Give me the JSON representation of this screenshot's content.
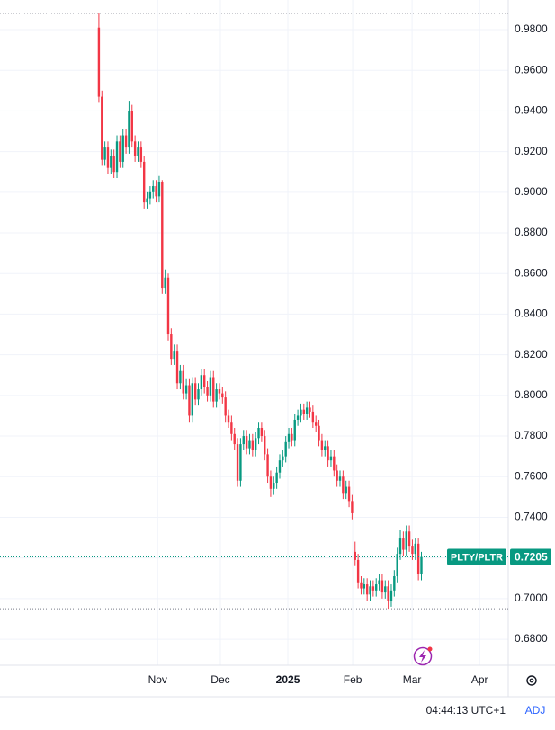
{
  "chart_data": {
    "type": "candlestick",
    "symbol": "PLTY/PLTR",
    "last_price": 0.7205,
    "time": "04:44:13 UTC+1",
    "adjust": "ADJ",
    "up_color": "#089981",
    "down_color": "#f23645",
    "grid": true,
    "high_low_lines": [
      0.988,
      0.695
    ],
    "xlim": [
      -32.8,
      135.8
    ],
    "xticks": [
      {
        "value": 19.5,
        "label": "Nov"
      },
      {
        "value": 40.3,
        "label": "Dec"
      },
      {
        "value": 62.7,
        "label": "2025"
      },
      {
        "value": 84.2,
        "label": "Feb"
      },
      {
        "value": 103.9,
        "label": "Mar"
      },
      {
        "value": 126.3,
        "label": "Apr"
      }
    ],
    "ylim": [
      0.6672,
      0.9946
    ],
    "yticks": [
      {
        "value": 0.98,
        "label": "0.9800"
      },
      {
        "value": 0.96,
        "label": "0.9600"
      },
      {
        "value": 0.94,
        "label": "0.9400"
      },
      {
        "value": 0.92,
        "label": "0.9200"
      },
      {
        "value": 0.9,
        "label": "0.9000"
      },
      {
        "value": 0.88,
        "label": "0.8800"
      },
      {
        "value": 0.86,
        "label": "0.8600"
      },
      {
        "value": 0.84,
        "label": "0.8400"
      },
      {
        "value": 0.82,
        "label": "0.8200"
      },
      {
        "value": 0.8,
        "label": "0.8000"
      },
      {
        "value": 0.78,
        "label": "0.7800"
      },
      {
        "value": 0.76,
        "label": "0.7600"
      },
      {
        "value": 0.74,
        "label": "0.7400"
      },
      {
        "value": 0.72,
        "label": "0.7200"
      },
      {
        "value": 0.7,
        "label": "0.7000"
      },
      {
        "value": 0.68,
        "label": "0.6800"
      }
    ],
    "x": [
      0,
      1,
      2,
      3,
      4,
      5,
      6,
      7,
      8,
      9,
      10,
      11,
      12,
      13,
      14,
      15,
      16,
      17,
      18,
      19,
      20,
      21,
      22,
      23,
      24,
      25,
      26,
      27,
      28,
      29,
      30,
      31,
      32,
      33,
      34,
      35,
      36,
      37,
      38,
      39,
      40,
      41,
      42,
      43,
      44,
      45,
      46,
      47,
      48,
      49,
      50,
      51,
      52,
      53,
      54,
      55,
      56,
      57,
      58,
      59,
      60,
      61,
      62,
      63,
      64,
      65,
      66,
      67,
      68,
      69,
      70,
      71,
      72,
      73,
      74,
      75,
      76,
      77,
      78,
      79,
      80,
      81,
      82,
      83,
      84,
      85,
      86,
      87,
      88,
      89,
      90,
      91,
      92,
      93,
      94,
      95,
      96,
      97,
      98,
      99,
      100,
      101,
      102,
      103,
      104,
      105,
      106,
      107
    ],
    "open": [
      0.981,
      0.947,
      0.916,
      0.922,
      0.912,
      0.918,
      0.91,
      0.925,
      0.915,
      0.928,
      0.922,
      0.94,
      0.925,
      0.918,
      0.922,
      0.915,
      0.895,
      0.897,
      0.9,
      0.903,
      0.898,
      0.905,
      0.853,
      0.858,
      0.83,
      0.818,
      0.822,
      0.806,
      0.812,
      0.801,
      0.805,
      0.79,
      0.806,
      0.798,
      0.803,
      0.81,
      0.804,
      0.8,
      0.809,
      0.797,
      0.803,
      0.801,
      0.799,
      0.79,
      0.787,
      0.781,
      0.776,
      0.758,
      0.776,
      0.78,
      0.774,
      0.778,
      0.773,
      0.779,
      0.784,
      0.78,
      0.771,
      0.76,
      0.754,
      0.757,
      0.762,
      0.768,
      0.77,
      0.777,
      0.781,
      0.778,
      0.788,
      0.79,
      0.793,
      0.791,
      0.794,
      0.792,
      0.787,
      0.785,
      0.778,
      0.773,
      0.775,
      0.768,
      0.77,
      0.763,
      0.758,
      0.76,
      0.752,
      0.755,
      0.748,
      0.723,
      0.719,
      0.708,
      0.705,
      0.707,
      0.702,
      0.706,
      0.704,
      0.707,
      0.709,
      0.703,
      0.706,
      0.699,
      0.704,
      0.711,
      0.722,
      0.73,
      0.724,
      0.733,
      0.726,
      0.722,
      0.727,
      0.712
    ],
    "high": [
      0.988,
      0.95,
      0.925,
      0.925,
      0.921,
      0.921,
      0.928,
      0.928,
      0.931,
      0.931,
      0.945,
      0.943,
      0.928,
      0.925,
      0.925,
      0.918,
      0.9,
      0.903,
      0.906,
      0.906,
      0.908,
      0.906,
      0.862,
      0.86,
      0.833,
      0.825,
      0.825,
      0.815,
      0.815,
      0.808,
      0.808,
      0.809,
      0.809,
      0.806,
      0.813,
      0.813,
      0.807,
      0.812,
      0.812,
      0.806,
      0.806,
      0.804,
      0.802,
      0.793,
      0.79,
      0.784,
      0.779,
      0.779,
      0.783,
      0.783,
      0.781,
      0.781,
      0.782,
      0.787,
      0.787,
      0.783,
      0.774,
      0.763,
      0.76,
      0.765,
      0.771,
      0.773,
      0.78,
      0.784,
      0.784,
      0.791,
      0.793,
      0.796,
      0.796,
      0.797,
      0.797,
      0.795,
      0.79,
      0.788,
      0.781,
      0.778,
      0.778,
      0.773,
      0.773,
      0.766,
      0.763,
      0.763,
      0.758,
      0.758,
      0.751,
      0.728,
      0.722,
      0.711,
      0.71,
      0.71,
      0.709,
      0.709,
      0.71,
      0.712,
      0.712,
      0.709,
      0.709,
      0.707,
      0.714,
      0.725,
      0.734,
      0.733,
      0.736,
      0.736,
      0.729,
      0.73,
      0.73,
      0.723
    ],
    "low": [
      0.944,
      0.913,
      0.913,
      0.909,
      0.909,
      0.907,
      0.907,
      0.912,
      0.912,
      0.919,
      0.919,
      0.922,
      0.915,
      0.915,
      0.912,
      0.892,
      0.892,
      0.894,
      0.897,
      0.895,
      0.895,
      0.85,
      0.85,
      0.827,
      0.815,
      0.815,
      0.803,
      0.803,
      0.798,
      0.798,
      0.787,
      0.787,
      0.795,
      0.795,
      0.8,
      0.801,
      0.797,
      0.797,
      0.794,
      0.794,
      0.798,
      0.796,
      0.787,
      0.784,
      0.778,
      0.773,
      0.755,
      0.755,
      0.773,
      0.771,
      0.771,
      0.77,
      0.77,
      0.776,
      0.777,
      0.768,
      0.757,
      0.75,
      0.751,
      0.754,
      0.759,
      0.765,
      0.767,
      0.774,
      0.775,
      0.775,
      0.785,
      0.787,
      0.788,
      0.788,
      0.789,
      0.784,
      0.782,
      0.775,
      0.77,
      0.77,
      0.765,
      0.765,
      0.76,
      0.755,
      0.755,
      0.749,
      0.749,
      0.745,
      0.739,
      0.716,
      0.705,
      0.702,
      0.702,
      0.699,
      0.699,
      0.701,
      0.701,
      0.704,
      0.7,
      0.7,
      0.695,
      0.696,
      0.701,
      0.708,
      0.719,
      0.721,
      0.721,
      0.723,
      0.719,
      0.719,
      0.709,
      0.709
    ],
    "close": [
      0.947,
      0.916,
      0.922,
      0.912,
      0.918,
      0.91,
      0.925,
      0.915,
      0.928,
      0.922,
      0.94,
      0.925,
      0.918,
      0.922,
      0.915,
      0.895,
      0.897,
      0.9,
      0.903,
      0.898,
      0.905,
      0.853,
      0.858,
      0.83,
      0.818,
      0.822,
      0.806,
      0.812,
      0.801,
      0.805,
      0.79,
      0.806,
      0.798,
      0.803,
      0.81,
      0.804,
      0.8,
      0.809,
      0.797,
      0.803,
      0.801,
      0.799,
      0.79,
      0.787,
      0.781,
      0.776,
      0.758,
      0.776,
      0.78,
      0.774,
      0.778,
      0.773,
      0.779,
      0.784,
      0.78,
      0.771,
      0.76,
      0.754,
      0.757,
      0.762,
      0.768,
      0.77,
      0.777,
      0.781,
      0.778,
      0.788,
      0.79,
      0.793,
      0.791,
      0.794,
      0.792,
      0.787,
      0.785,
      0.778,
      0.773,
      0.775,
      0.768,
      0.77,
      0.763,
      0.758,
      0.76,
      0.752,
      0.755,
      0.748,
      0.742,
      0.719,
      0.708,
      0.705,
      0.707,
      0.702,
      0.706,
      0.704,
      0.707,
      0.709,
      0.703,
      0.706,
      0.699,
      0.704,
      0.711,
      0.722,
      0.73,
      0.724,
      0.733,
      0.726,
      0.722,
      0.727,
      0.712,
      0.7205
    ]
  }
}
